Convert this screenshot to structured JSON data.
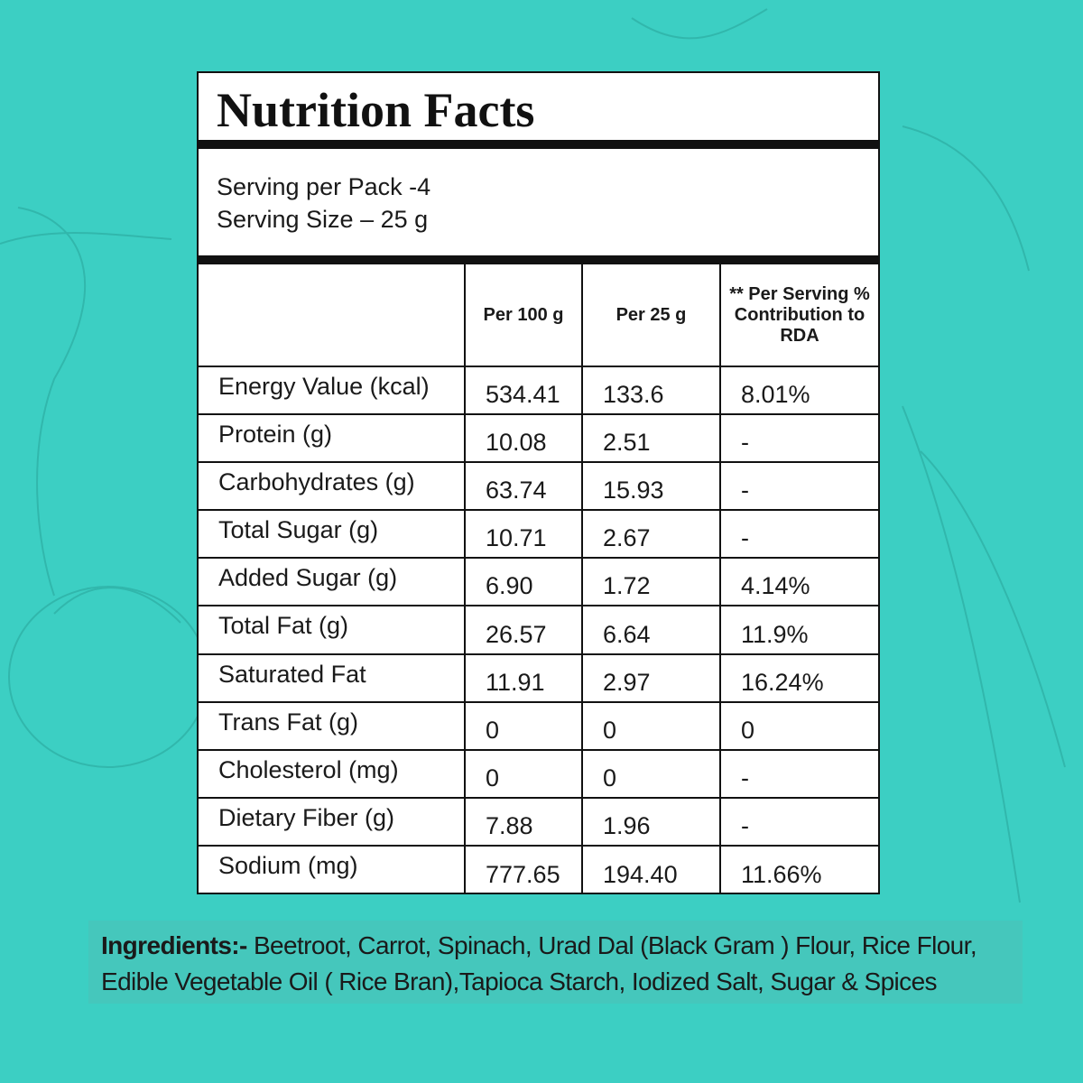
{
  "title": "Nutrition Facts",
  "serving": [
    "Serving per Pack -4",
    "Serving Size – 25 g"
  ],
  "table": {
    "header": [
      "Per 100 g",
      "Per 25 g",
      "** Per Serving % Contribution to RDA"
    ],
    "rows": [
      [
        "Energy Value (kcal)",
        "534.41",
        "133.6",
        "8.01%"
      ],
      [
        "Protein (g)",
        "10.08",
        "2.51",
        "-"
      ],
      [
        "Carbohydrates (g)",
        "63.74",
        "15.93",
        "-"
      ],
      [
        "Total Sugar (g)",
        "10.71",
        "2.67",
        "-"
      ],
      [
        "Added Sugar (g)",
        "6.90",
        "1.72",
        "4.14%"
      ],
      [
        "Total Fat (g)",
        "26.57",
        "6.64",
        "11.9%"
      ],
      [
        "Saturated Fat",
        "11.91",
        "2.97",
        "16.24%"
      ],
      [
        "Trans Fat (g)",
        "0",
        "0",
        "0"
      ],
      [
        "Cholesterol (mg)",
        "0",
        "0",
        "-"
      ],
      [
        "Dietary Fiber (g)",
        "7.88",
        "1.96",
        "-"
      ],
      [
        "Sodium (mg)",
        "777.65",
        "194.40",
        "11.66%"
      ]
    ]
  },
  "ingredients": {
    "label": "Ingredients:-",
    "text": "Beetroot, Carrot, Spinach, Urad Dal (Black Gram ) Flour, Rice Flour, Edible Vegetable Oil ( Rice Bran),Tapioca Starch, Iodized Salt, Sugar & Spices"
  }
}
